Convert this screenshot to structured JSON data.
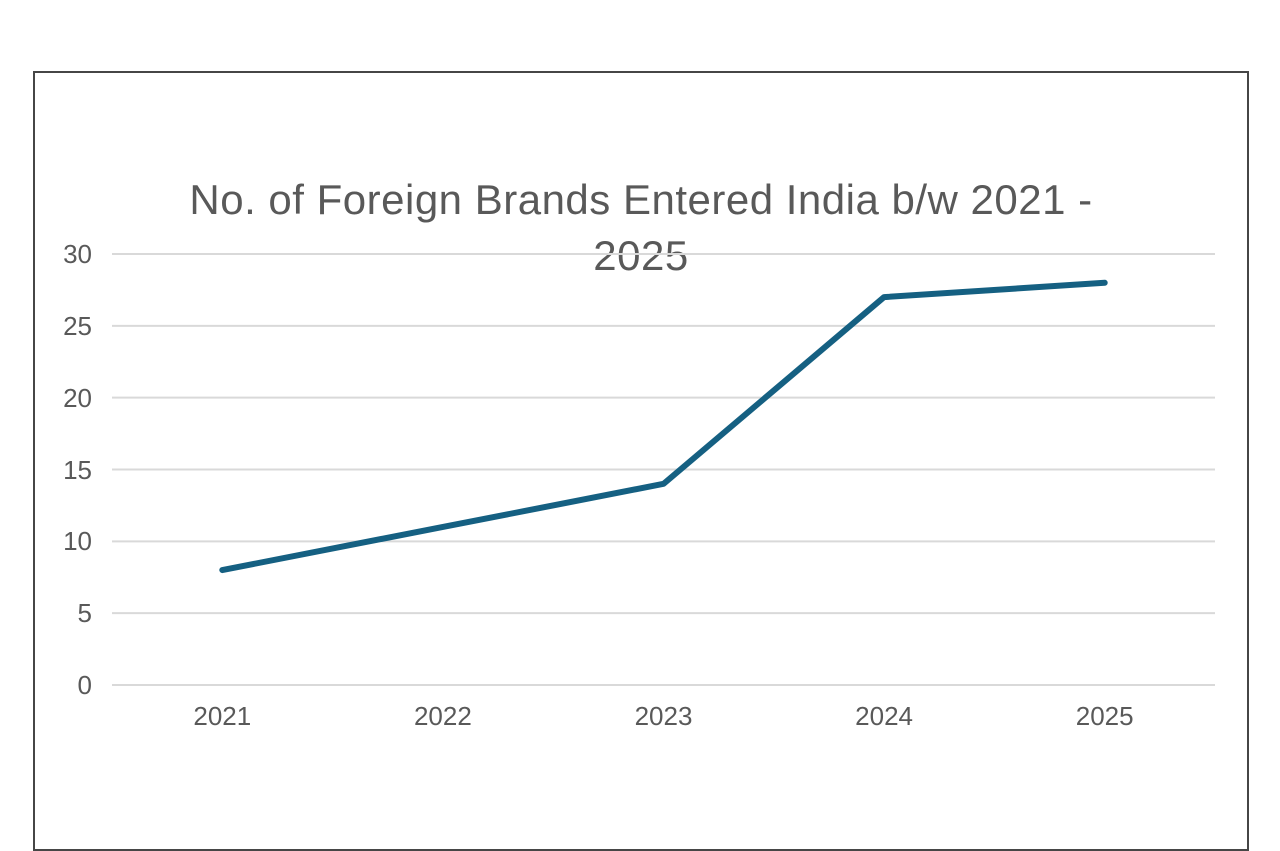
{
  "chart_data": {
    "type": "line",
    "title": "No. of Foreign Brands Entered India b/w 2021 -\n2025",
    "categories": [
      "2021",
      "2022",
      "2023",
      "2024",
      "2025"
    ],
    "values": [
      8,
      11,
      14,
      27,
      28
    ],
    "yticks": [
      0,
      5,
      10,
      15,
      20,
      25,
      30
    ],
    "ylim": [
      0,
      30
    ],
    "xlabel": "",
    "ylabel": "",
    "grid": "horizontal",
    "legend": "none",
    "colors": {
      "line": "#156082",
      "gridline": "#d9d9d9",
      "axis_label": "#595959",
      "title": "#595959",
      "frame_border": "#464646",
      "background": "#ffffff"
    }
  }
}
